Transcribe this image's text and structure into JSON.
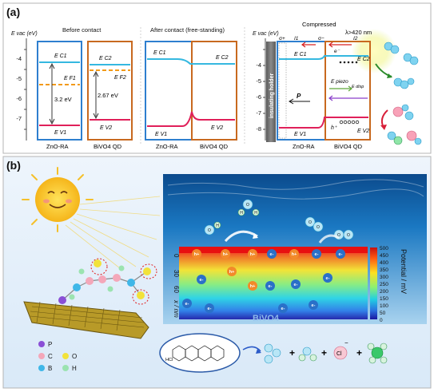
{
  "panel_a": {
    "label": "(a)",
    "y_axis_label": "E vac (eV)",
    "y_ticks": [
      "-4",
      "-5",
      "-6",
      "-7"
    ],
    "y_ticks_right": [
      "-4",
      "-5",
      "-6",
      "-7",
      "-8",
      "-9",
      "-10"
    ],
    "before": {
      "title": "Before contact",
      "ec1": "E C1",
      "ef1": "E F1",
      "ev1": "E V1",
      "ec2": "E C2",
      "ef2": "E F2",
      "ev2": "E V2",
      "gap1": "3.2 eV",
      "gap2": "2.67 eV",
      "label_left": "ZnO-RA",
      "label_right": "BiVO4 QD"
    },
    "after": {
      "title": "After contact (free-standing)",
      "ec1": "E C1",
      "ec2": "E C2",
      "ev1": "E V1",
      "ev2": "E V2",
      "label_left": "ZnO-RA",
      "label_right": "BiVO4 QD"
    },
    "compressed": {
      "title": "Compressed",
      "lambda": "λ>420 nm",
      "holder": "insulating holder",
      "ec1": "E C1",
      "ec2": "E C2",
      "ev1": "E V1",
      "ev2": "E V2",
      "p": "P",
      "epiezo": "E piezo",
      "edisp": "E disp",
      "e": "e⁻",
      "h": "h⁺",
      "sigma_plus": "σ+",
      "sigma_minus": "σ−",
      "i1": "I1",
      "i2": "I2",
      "label_left": "ZnO-RA",
      "label_right": "BiVO4 QD"
    }
  },
  "panel_b": {
    "label": "(b)",
    "colorbar_title": "Potential / mV",
    "colorbar_ticks": [
      "500",
      "450",
      "400",
      "350",
      "300",
      "250",
      "200",
      "150",
      "100",
      "50",
      "0"
    ],
    "depth_axis": "x / nm",
    "depth_ticks": [
      "0",
      "30",
      "60"
    ],
    "bivo4": "BiVO4",
    "legend": [
      {
        "symbol": "P",
        "color": "#8a4fd6"
      },
      {
        "symbol": "C",
        "color": "#f4a7b9"
      },
      {
        "symbol": "O",
        "color": "#f2e23a"
      },
      {
        "symbol": "B",
        "color": "#3fb7e8"
      },
      {
        "symbol": "H",
        "color": "#9be3b0"
      }
    ],
    "plus1": "+",
    "plus2": "+",
    "plus3": "+",
    "cl": "Cl",
    "cl_charge": "−",
    "hcl": "HCl"
  },
  "colors": {
    "zno_box": "#2e7fcf",
    "bivo4_box": "#c8691f",
    "cb_line": "#35b8e0",
    "vb_line": "#e0205a",
    "fermi": "#f29a1a"
  }
}
